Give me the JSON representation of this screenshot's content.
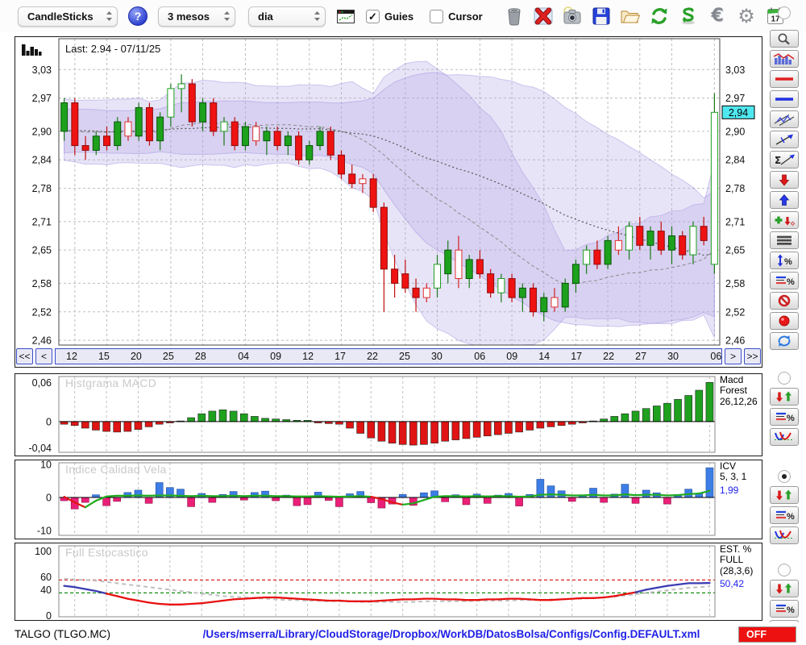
{
  "toolbar": {
    "chart_type": "CandleSticks",
    "help_label": "?",
    "period": "3 mesos",
    "interval": "dia",
    "guies_checkbox": {
      "label": "Guies",
      "checked": true
    },
    "cursor_checkbox": {
      "label": "Cursor",
      "checked": false
    },
    "calendar_day": "17",
    "icons": [
      "trash",
      "delete",
      "snapshot-camera",
      "save",
      "open-folder",
      "refresh",
      "sync",
      "currency-euro",
      "settings-gear",
      "calendar"
    ]
  },
  "main_chart": {
    "last_label": "Last: 2.94 - 07/11/25",
    "nav": {
      "first": "<<",
      "prev": "<",
      "next": ">",
      "last": ">>"
    }
  },
  "panels": {
    "macd": {
      "watermark": "Histgrama MACD",
      "label_lines": [
        "Macd",
        "Forest",
        "26,12,26"
      ]
    },
    "icv": {
      "watermark": "Indice Calidad Vela",
      "label_lines": [
        "ICV",
        "5, 3, 1"
      ],
      "value": "1,99"
    },
    "stoch": {
      "watermark": "Full Estocastico",
      "label_lines": [
        "EST. %",
        "FULL",
        "(28,3,6)"
      ],
      "value": "50,42"
    }
  },
  "sidebar": {
    "tools": [
      "zoom",
      "indicators-chart",
      "red-hline",
      "blue-hline",
      "channel",
      "trendline",
      "sigma-trendline",
      "arrow-down-red",
      "arrow-up-blue",
      "add-arrow",
      "list-lines",
      "vertical-measure-percent",
      "lines-percent",
      "no-entry",
      "record",
      "refresh-blue"
    ],
    "groups": [
      "macd",
      "icv",
      "stoch"
    ],
    "group_tools": [
      "arrows-up-down",
      "lines-percent",
      "curves"
    ],
    "selected_group": "icv"
  },
  "status_bar": {
    "symbol": "TALGO (TLGO.MC)",
    "config_path": "/Users/mserra/Library/CloudStorage/Dropbox/WorkDB/DatosBolsa/Configs/Config.DEFAULT.xml",
    "off_label": "OFF"
  },
  "colors": {
    "candle_up": "#1da11d",
    "candle_down": "#ef1212",
    "band": "#b2a4e6",
    "macd_pos": "#1fa11f",
    "macd_neg": "#e01414",
    "icv_pos": "#3c7de6",
    "icv_neg": "#ea1f78",
    "icv_line_up": "#1faa1f",
    "icv_line_down": "#e01414",
    "stoch_k_high": "#3c3cb4",
    "stoch_k_low": "#e81010",
    "stoch_d": "#c0c0c0",
    "guide_red": "#dd2222",
    "guide_green": "#118811",
    "last_price_box": "#50e8f0",
    "nav_border": "#3a4cc8",
    "off_red": "#ee1111",
    "path_blue": "#2020e8"
  },
  "chart_data": {
    "type": "candlestick+indicators",
    "title": "TALGO (TLGO.MC) daily candlesticks, 3 months",
    "price_range": [
      2.45,
      3.095
    ],
    "y_ticks": [
      {
        "v": 3.03,
        "label": "3,03"
      },
      {
        "v": 2.97,
        "label": "2,97"
      },
      {
        "v": 2.9,
        "label": "2,90"
      },
      {
        "v": 2.84,
        "label": "2,84"
      },
      {
        "v": 2.78,
        "label": "2,78"
      },
      {
        "v": 2.71,
        "label": "2,71"
      },
      {
        "v": 2.65,
        "label": "2,65"
      },
      {
        "v": 2.58,
        "label": "2,58"
      },
      {
        "v": 2.52,
        "label": "2,52"
      },
      {
        "v": 2.46,
        "label": "2,46"
      }
    ],
    "last_price": {
      "v": 2.94,
      "label": "2,94"
    },
    "x_ticks": [
      {
        "label": "12",
        "i": 1
      },
      {
        "label": "15",
        "i": 4
      },
      {
        "label": "20",
        "i": 7
      },
      {
        "label": "25",
        "i": 10
      },
      {
        "label": "28",
        "i": 13
      },
      {
        "label": "04",
        "i": 17
      },
      {
        "label": "09",
        "i": 20
      },
      {
        "label": "12",
        "i": 23
      },
      {
        "label": "17",
        "i": 26
      },
      {
        "label": "22",
        "i": 29
      },
      {
        "label": "25",
        "i": 32
      },
      {
        "label": "30",
        "i": 35
      },
      {
        "label": "06",
        "i": 39
      },
      {
        "label": "09",
        "i": 42
      },
      {
        "label": "14",
        "i": 45
      },
      {
        "label": "17",
        "i": 48
      },
      {
        "label": "22",
        "i": 51
      },
      {
        "label": "27",
        "i": 54
      },
      {
        "label": "30",
        "i": 57
      },
      {
        "label": "06",
        "i": 61
      }
    ],
    "candles": [
      [
        2.9,
        2.97,
        2.88,
        2.96,
        "G"
      ],
      [
        2.96,
        2.97,
        2.85,
        2.87,
        "R"
      ],
      [
        2.87,
        2.89,
        2.84,
        2.86,
        "R"
      ],
      [
        2.86,
        2.9,
        2.85,
        2.89,
        "G"
      ],
      [
        2.89,
        2.91,
        2.86,
        2.87,
        "R"
      ],
      [
        2.87,
        2.93,
        2.86,
        2.92,
        "G"
      ],
      [
        2.92,
        2.93,
        2.88,
        2.89,
        "r"
      ],
      [
        2.89,
        2.96,
        2.88,
        2.95,
        "G"
      ],
      [
        2.95,
        2.96,
        2.87,
        2.88,
        "R"
      ],
      [
        2.88,
        2.94,
        2.86,
        2.93,
        "G"
      ],
      [
        2.93,
        3.0,
        2.91,
        2.99,
        "g"
      ],
      [
        2.99,
        3.02,
        2.94,
        3.0,
        "g"
      ],
      [
        3.0,
        3.01,
        2.91,
        2.92,
        "R"
      ],
      [
        2.92,
        2.97,
        2.9,
        2.96,
        "G"
      ],
      [
        2.96,
        2.97,
        2.89,
        2.9,
        "R"
      ],
      [
        2.9,
        2.93,
        2.87,
        2.92,
        "g"
      ],
      [
        2.92,
        2.93,
        2.86,
        2.87,
        "R"
      ],
      [
        2.87,
        2.92,
        2.86,
        2.91,
        "G"
      ],
      [
        2.91,
        2.92,
        2.87,
        2.88,
        "r"
      ],
      [
        2.88,
        2.91,
        2.85,
        2.9,
        "G"
      ],
      [
        2.9,
        2.91,
        2.86,
        2.87,
        "R"
      ],
      [
        2.87,
        2.9,
        2.85,
        2.89,
        "G"
      ],
      [
        2.89,
        2.9,
        2.83,
        2.84,
        "R"
      ],
      [
        2.84,
        2.88,
        2.83,
        2.87,
        "G"
      ],
      [
        2.87,
        2.91,
        2.86,
        2.9,
        "G"
      ],
      [
        2.9,
        2.91,
        2.84,
        2.85,
        "R"
      ],
      [
        2.85,
        2.86,
        2.8,
        2.81,
        "R"
      ],
      [
        2.81,
        2.83,
        2.78,
        2.79,
        "R"
      ],
      [
        2.79,
        2.81,
        2.77,
        2.8,
        "r"
      ],
      [
        2.8,
        2.81,
        2.73,
        2.74,
        "R"
      ],
      [
        2.74,
        2.75,
        2.52,
        2.61,
        "R"
      ],
      [
        2.61,
        2.64,
        2.55,
        2.58,
        "R"
      ],
      [
        2.6,
        2.63,
        2.56,
        2.57,
        "R"
      ],
      [
        2.57,
        2.59,
        2.52,
        2.55,
        "R"
      ],
      [
        2.55,
        2.58,
        2.54,
        2.57,
        "r"
      ],
      [
        2.57,
        2.64,
        2.55,
        2.62,
        "g"
      ],
      [
        2.6,
        2.67,
        2.58,
        2.65,
        "G"
      ],
      [
        2.65,
        2.68,
        2.57,
        2.59,
        "r"
      ],
      [
        2.59,
        2.64,
        2.57,
        2.63,
        "G"
      ],
      [
        2.63,
        2.65,
        2.59,
        2.6,
        "R"
      ],
      [
        2.6,
        2.61,
        2.55,
        2.56,
        "R"
      ],
      [
        2.56,
        2.6,
        2.54,
        2.59,
        "g"
      ],
      [
        2.59,
        2.6,
        2.54,
        2.55,
        "R"
      ],
      [
        2.55,
        2.58,
        2.52,
        2.57,
        "G"
      ],
      [
        2.57,
        2.58,
        2.51,
        2.52,
        "R"
      ],
      [
        2.52,
        2.56,
        2.5,
        2.55,
        "G"
      ],
      [
        2.55,
        2.57,
        2.52,
        2.53,
        "r"
      ],
      [
        2.53,
        2.59,
        2.52,
        2.58,
        "G"
      ],
      [
        2.58,
        2.63,
        2.56,
        2.62,
        "G"
      ],
      [
        2.62,
        2.66,
        2.6,
        2.65,
        "g"
      ],
      [
        2.65,
        2.67,
        2.61,
        2.62,
        "R"
      ],
      [
        2.62,
        2.68,
        2.61,
        2.67,
        "G"
      ],
      [
        2.67,
        2.7,
        2.64,
        2.65,
        "r"
      ],
      [
        2.65,
        2.71,
        2.63,
        2.7,
        "g"
      ],
      [
        2.7,
        2.72,
        2.65,
        2.66,
        "R"
      ],
      [
        2.66,
        2.7,
        2.63,
        2.69,
        "G"
      ],
      [
        2.69,
        2.71,
        2.64,
        2.65,
        "R"
      ],
      [
        2.65,
        2.7,
        2.62,
        2.68,
        "G"
      ],
      [
        2.68,
        2.69,
        2.63,
        2.64,
        "R"
      ],
      [
        2.64,
        2.71,
        2.62,
        2.7,
        "g"
      ],
      [
        2.7,
        2.72,
        2.66,
        2.67,
        "R"
      ],
      [
        2.62,
        2.98,
        2.6,
        2.94,
        "g"
      ]
    ],
    "macd": {
      "range": [
        -0.047,
        0.069
      ],
      "ticks": [
        {
          "v": 0.06,
          "label": "0,06"
        },
        {
          "v": 0,
          "label": "0"
        },
        {
          "v": -0.04,
          "label": "-0,04"
        }
      ],
      "values": [
        -0.004,
        -0.006,
        -0.01,
        -0.013,
        -0.015,
        -0.016,
        -0.015,
        -0.012,
        -0.008,
        -0.004,
        -0.002,
        0.001,
        0.006,
        0.012,
        0.016,
        0.018,
        0.016,
        0.012,
        0.008,
        0.005,
        0.004,
        0.003,
        0.002,
        0.002,
        -0.002,
        -0.003,
        -0.004,
        -0.01,
        -0.018,
        -0.025,
        -0.03,
        -0.033,
        -0.035,
        -0.036,
        -0.035,
        -0.033,
        -0.03,
        -0.028,
        -0.026,
        -0.024,
        -0.022,
        -0.02,
        -0.018,
        -0.016,
        -0.013,
        -0.01,
        -0.008,
        -0.006,
        -0.004,
        -0.002,
        0.001,
        0.004,
        0.008,
        0.012,
        0.016,
        0.02,
        0.024,
        0.028,
        0.034,
        0.04,
        0.048,
        0.06
      ]
    },
    "icv": {
      "range": [
        -11.5,
        10.5
      ],
      "ticks": [
        {
          "v": 10,
          "label": "10"
        },
        {
          "v": 0,
          "label": "0"
        },
        {
          "v": -10,
          "label": "-10"
        }
      ],
      "bars": [
        -1.0,
        -3.5,
        -1.5,
        0.8,
        -2.5,
        -1.2,
        1.5,
        2.2,
        -1.8,
        4.5,
        3.0,
        2.5,
        -2.8,
        1.2,
        -1.5,
        0.9,
        1.8,
        -0.8,
        1.5,
        1.9,
        -1.0,
        0.7,
        -2.5,
        -2.2,
        1.6,
        -0.9,
        -2.8,
        1.1,
        1.8,
        -1.6,
        -3.2,
        -2.0,
        0.9,
        -2.4,
        1.4,
        2.0,
        -1.3,
        0.8,
        -2.2,
        1.0,
        -1.8,
        0.7,
        1.2,
        -2.6,
        0.9,
        5.5,
        3.5,
        2.0,
        -1.2,
        0.8,
        2.8,
        -1.5,
        1.0,
        4.0,
        -1.8,
        2.2,
        1.4,
        -2.0,
        0.9,
        2.5,
        1.2,
        9.0
      ],
      "line": [
        0.2,
        -1.5,
        -3.0,
        -1.0,
        0.3,
        0.5,
        0.5,
        0.6,
        0.5,
        0.6,
        0.6,
        0.5,
        0.4,
        0.5,
        0.4,
        0.4,
        0.5,
        0.4,
        0.5,
        0.5,
        0.4,
        0.4,
        0.3,
        0.3,
        0.4,
        0.3,
        0.2,
        0.3,
        0.4,
        0.2,
        -0.5,
        -1.5,
        -2.2,
        -1.8,
        -0.8,
        0.2,
        0.4,
        0.4,
        0.3,
        0.4,
        0.3,
        0.4,
        0.4,
        0.2,
        0.3,
        0.8,
        0.9,
        0.8,
        0.6,
        0.6,
        0.8,
        0.6,
        0.6,
        0.9,
        0.7,
        0.8,
        0.8,
        0.6,
        0.7,
        1.0,
        1.2,
        2.0
      ]
    },
    "stoch": {
      "range": [
        -2,
        108
      ],
      "ticks": [
        {
          "v": 100,
          "label": "100"
        },
        {
          "v": 60,
          "label": "60"
        },
        {
          "v": 40,
          "label": "40"
        },
        {
          "v": 0,
          "label": "0"
        }
      ],
      "guides": [
        {
          "v": 55,
          "color": "red"
        },
        {
          "v": 35,
          "color": "green"
        }
      ],
      "threshold": 35,
      "k": [
        46,
        44,
        41,
        38,
        34,
        30,
        26,
        23,
        20,
        18,
        17,
        17,
        18,
        19,
        21,
        23,
        25,
        26,
        27,
        28,
        28,
        27,
        26,
        25,
        24,
        23,
        23,
        22,
        22,
        22,
        23,
        24,
        25,
        25,
        26,
        26,
        25,
        25,
        24,
        24,
        25,
        25,
        26,
        26,
        25,
        24,
        24,
        25,
        26,
        27,
        27,
        28,
        30,
        33,
        36,
        40,
        43,
        46,
        48,
        50,
        50,
        50.4
      ],
      "d": [
        57,
        56,
        55,
        54,
        52,
        50,
        48,
        46,
        44,
        42,
        40,
        38,
        36,
        34,
        32,
        30,
        29,
        28,
        27,
        26,
        25,
        24,
        24,
        23,
        23,
        22,
        22,
        22,
        21,
        21,
        21,
        21,
        21,
        21,
        22,
        22,
        22,
        22,
        22,
        23,
        23,
        23,
        23,
        24,
        24,
        24,
        25,
        25,
        26,
        26,
        27,
        28,
        29,
        31,
        33,
        35,
        37,
        39,
        41,
        43,
        44,
        45
      ]
    }
  }
}
